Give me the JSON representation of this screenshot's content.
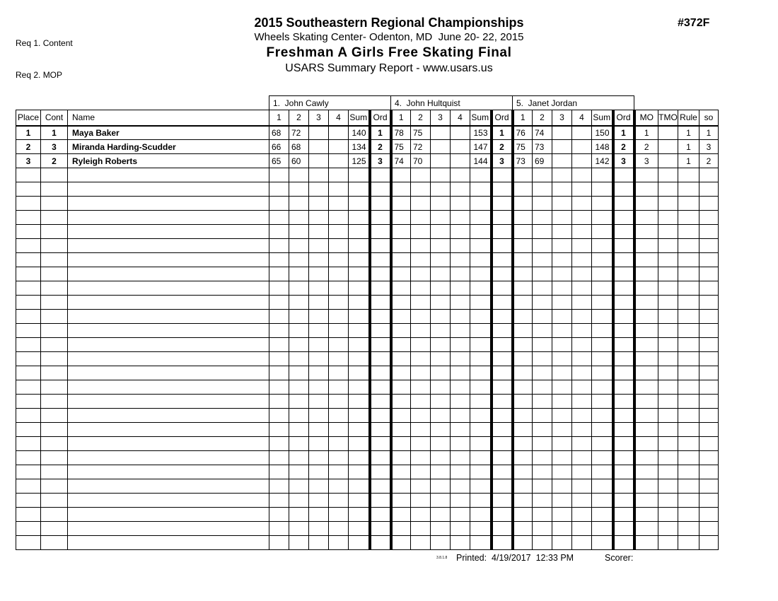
{
  "page": {
    "req_line_1": "Req 1. Content",
    "req_line_2": "Req 2. MOP",
    "event_number": "#372F",
    "title": "2015 Southeastern Regional Championships",
    "subtitle": "Wheels Skating Center- Odenton, MD  June 20- 22, 2015",
    "event_title": "Freshman A Girls Free Skating Final",
    "report_title": "USARS Summary Report - www.usars.us"
  },
  "table": {
    "judges": [
      "1.  John Cawly",
      "4.  John Hultquist",
      "5.  Janet Jordan"
    ],
    "left_headers": [
      "Place",
      "Cont",
      "Name"
    ],
    "judge_headers": [
      "1",
      "2",
      "3",
      "4",
      "Sum",
      "Ord"
    ],
    "right_headers": [
      "MO",
      "TMO",
      "Rule",
      "so"
    ],
    "rows": [
      {
        "place": "1",
        "cont": "1",
        "name": "Maya Baker",
        "judges": [
          {
            "s1": "68",
            "s2": "72",
            "s3": "",
            "s4": "",
            "sum": "140",
            "ord": "1"
          },
          {
            "s1": "78",
            "s2": "75",
            "s3": "",
            "s4": "",
            "sum": "153",
            "ord": "1"
          },
          {
            "s1": "76",
            "s2": "74",
            "s3": "",
            "s4": "",
            "sum": "150",
            "ord": "1"
          }
        ],
        "mo": "1",
        "tmo": "",
        "rule": "1",
        "so": "1"
      },
      {
        "place": "2",
        "cont": "3",
        "name": "Miranda Harding-Scudder",
        "judges": [
          {
            "s1": "66",
            "s2": "68",
            "s3": "",
            "s4": "",
            "sum": "134",
            "ord": "2"
          },
          {
            "s1": "75",
            "s2": "72",
            "s3": "",
            "s4": "",
            "sum": "147",
            "ord": "2"
          },
          {
            "s1": "75",
            "s2": "73",
            "s3": "",
            "s4": "",
            "sum": "148",
            "ord": "2"
          }
        ],
        "mo": "2",
        "tmo": "",
        "rule": "1",
        "so": "3"
      },
      {
        "place": "3",
        "cont": "2",
        "name": "Ryleigh Roberts",
        "judges": [
          {
            "s1": "65",
            "s2": "60",
            "s3": "",
            "s4": "",
            "sum": "125",
            "ord": "3"
          },
          {
            "s1": "74",
            "s2": "70",
            "s3": "",
            "s4": "",
            "sum": "144",
            "ord": "3"
          },
          {
            "s1": "73",
            "s2": "69",
            "s3": "",
            "s4": "",
            "sum": "142",
            "ord": "3"
          }
        ],
        "mo": "3",
        "tmo": "",
        "rule": "1",
        "so": "2"
      }
    ],
    "empty_row_count": 27
  },
  "footer": {
    "version": "3.8.1.8",
    "printed_label": "Printed:  4/19/2017  12:33 PM",
    "scorer_label": "Scorer:"
  }
}
